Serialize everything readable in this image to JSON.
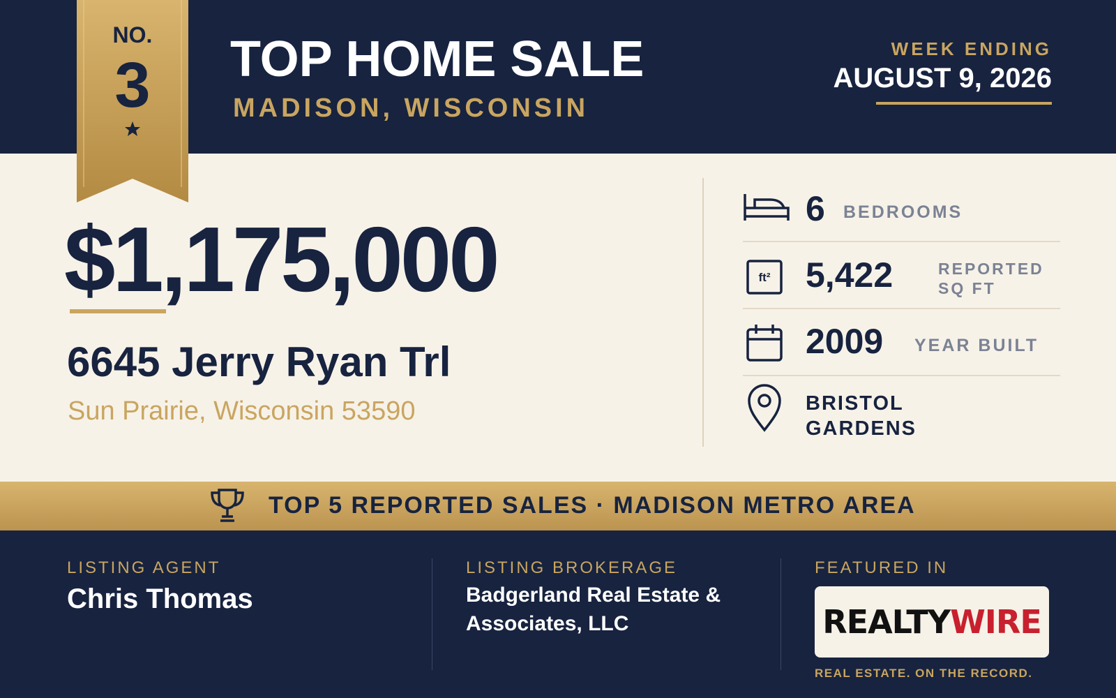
{
  "badge": {
    "label": "NO.",
    "number": "3"
  },
  "header": {
    "title": "TOP HOME SALE",
    "subtitle": "MADISON, WISCONSIN"
  },
  "week": {
    "label": "WEEK ENDING",
    "date": "AUGUST 9, 2026"
  },
  "price": "$1,175,000",
  "address": {
    "street": "6645 Jerry Ryan Trl",
    "city": "Sun Prairie, Wisconsin 53590"
  },
  "stats": [
    {
      "value": "6",
      "label": "BEDROOMS"
    },
    {
      "value": "5,422",
      "label": "REPORTED SQ FT"
    },
    {
      "value": "2009",
      "label": "YEAR BUILT"
    },
    {
      "label": "BRISTOL GARDENS"
    }
  ],
  "banner": "TOP 5 REPORTED SALES · MADISON METRO AREA",
  "footer": {
    "agent": {
      "label": "LISTING AGENT",
      "name": "Chris Thomas"
    },
    "brokerage": {
      "label": "LISTING BROKERAGE",
      "name": "Badgerland Real Estate & Associates, LLC"
    },
    "featured": {
      "label": "FEATURED IN",
      "logo_left": "REALTY",
      "logo_right": "WIRE",
      "tagline": "REAL ESTATE. ON THE RECORD."
    }
  }
}
